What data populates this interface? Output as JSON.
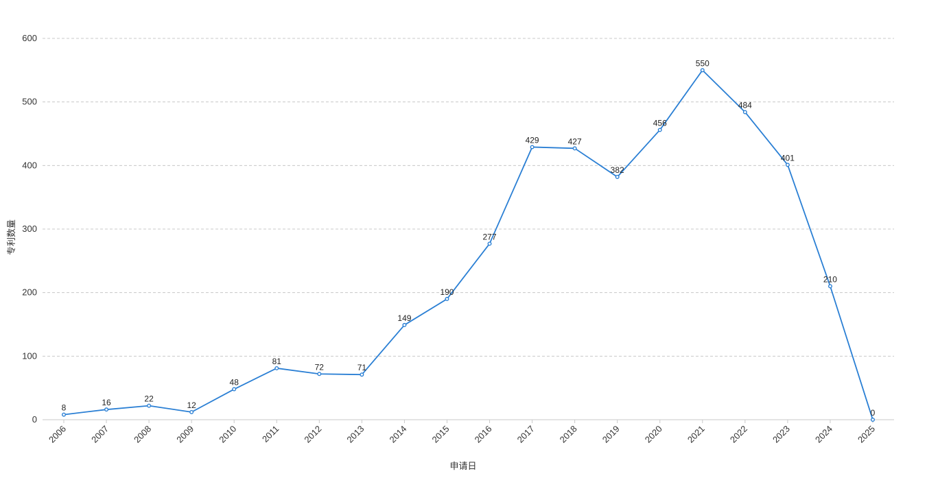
{
  "chart_data": {
    "type": "line",
    "xlabel": "申请日",
    "ylabel": "专利数量",
    "ylim": [
      0,
      600
    ],
    "yticks": [
      0,
      100,
      200,
      300,
      400,
      500,
      600
    ],
    "grid": true,
    "categories": [
      "2006",
      "2007",
      "2008",
      "2009",
      "2010",
      "2011",
      "2012",
      "2013",
      "2014",
      "2015",
      "2016",
      "2017",
      "2018",
      "2019",
      "2020",
      "2021",
      "2022",
      "2023",
      "2024",
      "2025"
    ],
    "series": [
      {
        "values": [
          8,
          16,
          22,
          12,
          48,
          81,
          72,
          71,
          149,
          190,
          277,
          429,
          427,
          382,
          456,
          550,
          484,
          401,
          210,
          0
        ]
      }
    ],
    "colors": {
      "line": "#2a7fd4",
      "grid": "#c8c8c8",
      "text": "#333333"
    }
  }
}
